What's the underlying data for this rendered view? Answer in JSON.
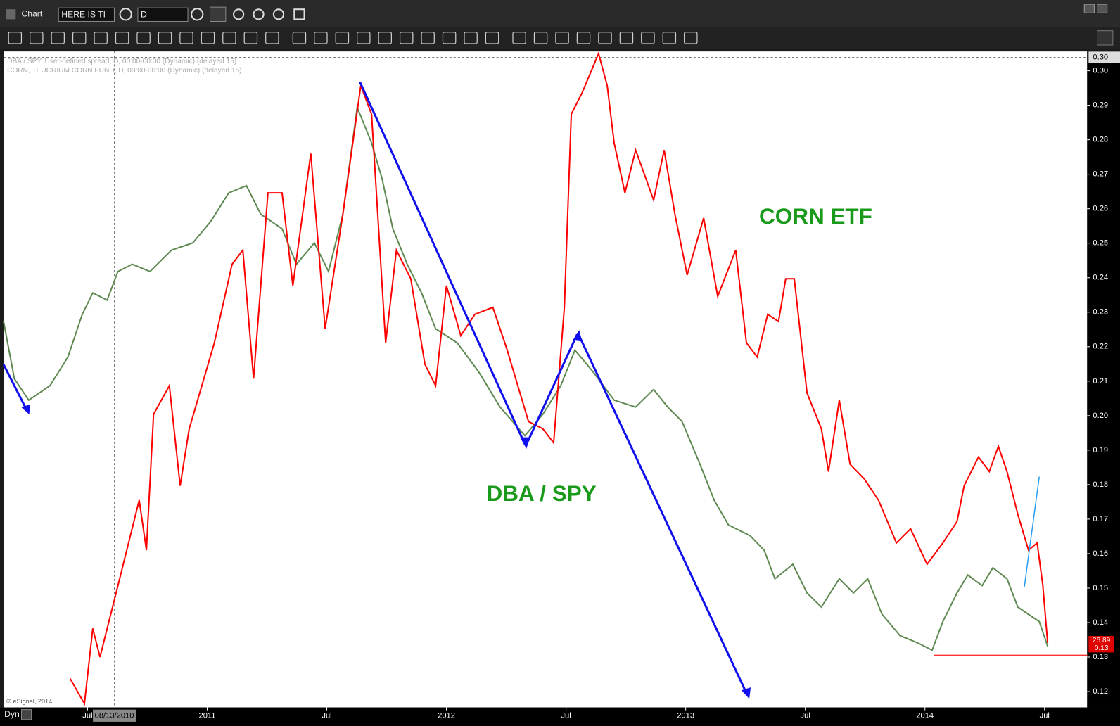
{
  "window": {
    "title": "Chart",
    "symbol": "HERE IS TI",
    "interval": "D",
    "mode": "Dyn"
  },
  "chart_data": {
    "type": "line",
    "copyright": "© eSignal, 2014",
    "annotations": [
      "CORN ETF",
      "DBA / SPY"
    ],
    "xlim": [
      2010.149,
      2014.678
    ],
    "xticks": [
      {
        "value": 2010.5,
        "label": "Jul"
      },
      {
        "value": 2011,
        "label": "2011"
      },
      {
        "value": 2011.5,
        "label": "Jul"
      },
      {
        "value": 2012,
        "label": "2012"
      },
      {
        "value": 2012.5,
        "label": "Jul"
      },
      {
        "value": 2013,
        "label": "2013"
      },
      {
        "value": 2013.5,
        "label": "Jul"
      },
      {
        "value": 2014,
        "label": "2014"
      },
      {
        "value": 2014.5,
        "label": "Jul"
      }
    ],
    "ylim": [
      0.1154,
      0.3056
    ],
    "yticks": [
      0.12,
      0.13,
      0.14,
      0.15,
      0.16,
      0.17,
      0.18,
      0.19,
      {
        "value": 0.2,
        "label": "0.20"
      },
      0.21,
      0.22,
      0.23,
      0.24,
      0.25,
      0.26,
      0.27,
      0.28,
      0.29,
      {
        "value": 0.3,
        "label": "0.30"
      }
    ],
    "crosshair": {
      "x": {
        "value": 2010.612,
        "label": "08/13/2010"
      },
      "y": {
        "value": 0.3039,
        "label": "0.30"
      }
    },
    "series": [
      {
        "name": "DBA / SPY, User-defined spread, D, 00:00-00:00 (Dynamic) (delayed 15)",
        "color": "#5f8a52",
        "last_price": 0.13,
        "x": [
          2010.149,
          2010.194,
          2010.254,
          2010.343,
          2010.418,
          2010.478,
          2010.522,
          2010.582,
          2010.627,
          2010.687,
          2010.761,
          2010.851,
          2010.94,
          2011.015,
          2011.09,
          2011.164,
          2011.224,
          2011.313,
          2011.373,
          2011.448,
          2011.507,
          2011.567,
          2011.627,
          2011.687,
          2011.731,
          2011.776,
          2011.836,
          2011.896,
          2011.955,
          2012.045,
          2012.134,
          2012.224,
          2012.328,
          2012.403,
          2012.478,
          2012.537,
          2012.612,
          2012.701,
          2012.791,
          2012.866,
          2012.925,
          2012.985,
          2013.06,
          2013.119,
          2013.179,
          2013.269,
          2013.328,
          2013.373,
          2013.448,
          2013.507,
          2013.567,
          2013.642,
          2013.701,
          2013.761,
          2013.821,
          2013.896,
          2013.97,
          2014.03,
          2014.075,
          2014.134,
          2014.179,
          2014.239,
          2014.284,
          2014.343,
          2014.388,
          2014.433,
          2014.478,
          2014.513
        ],
        "values": [
          0.2273,
          0.2107,
          0.2045,
          0.2087,
          0.217,
          0.2294,
          0.2356,
          0.2335,
          0.2418,
          0.2439,
          0.2418,
          0.248,
          0.2501,
          0.2563,
          0.2646,
          0.2667,
          0.2584,
          0.2542,
          0.2439,
          0.2501,
          0.2418,
          0.2584,
          0.2894,
          0.2791,
          0.2687,
          0.2542,
          0.2439,
          0.2356,
          0.2252,
          0.2211,
          0.2128,
          0.2025,
          0.1942,
          0.2004,
          0.2087,
          0.219,
          0.2128,
          0.2045,
          0.2025,
          0.2076,
          0.2025,
          0.1983,
          0.1859,
          0.1755,
          0.1683,
          0.1652,
          0.161,
          0.1527,
          0.1569,
          0.1486,
          0.1445,
          0.1527,
          0.1486,
          0.1527,
          0.1424,
          0.1362,
          0.1341,
          0.132,
          0.1403,
          0.1486,
          0.1538,
          0.1507,
          0.1559,
          0.1527,
          0.1445,
          0.1424,
          0.1403,
          0.1331
        ]
      },
      {
        "name": "CORN, TEUCRIUM CORN FUND, D, 00:00-00:00 (Dynamic) (delayed 15)",
        "color": "#ff0000",
        "last_price": 26.89,
        "x": [
          2010.427,
          2010.487,
          2010.522,
          2010.552,
          2010.627,
          2010.716,
          2010.746,
          2010.776,
          2010.842,
          2010.887,
          2010.925,
          2011.03,
          2011.104,
          2011.149,
          2011.194,
          2011.254,
          2011.313,
          2011.358,
          2011.433,
          2011.493,
          2011.567,
          2011.642,
          2011.687,
          2011.746,
          2011.791,
          2011.851,
          2011.91,
          2011.955,
          2012.0,
          2012.06,
          2012.119,
          2012.194,
          2012.254,
          2012.343,
          2012.403,
          2012.448,
          2012.493,
          2012.522,
          2012.567,
          2012.636,
          2012.672,
          2012.701,
          2012.746,
          2012.791,
          2012.866,
          2012.91,
          2012.955,
          2013.006,
          2013.075,
          2013.134,
          2013.209,
          2013.254,
          2013.299,
          2013.343,
          2013.388,
          2013.418,
          2013.454,
          2013.507,
          2013.567,
          2013.597,
          2013.642,
          2013.687,
          2013.746,
          2013.806,
          2013.881,
          2013.94,
          2014.009,
          2014.075,
          2014.134,
          2014.164,
          2014.224,
          2014.269,
          2014.307,
          2014.343,
          2014.388,
          2014.433,
          2014.469,
          2014.493,
          2014.513
        ],
        "values": [
          0.1238,
          0.1165,
          0.1383,
          0.13,
          0.1507,
          0.1755,
          0.161,
          0.2004,
          0.2087,
          0.1797,
          0.1962,
          0.2211,
          0.2439,
          0.248,
          0.2107,
          0.2646,
          0.2646,
          0.2377,
          0.276,
          0.2252,
          0.2584,
          0.2957,
          0.2874,
          0.2211,
          0.248,
          0.2397,
          0.2149,
          0.2087,
          0.2377,
          0.2232,
          0.2294,
          0.2314,
          0.219,
          0.1983,
          0.1962,
          0.1921,
          0.2314,
          0.2874,
          0.2936,
          0.305,
          0.2957,
          0.2791,
          0.2646,
          0.277,
          0.2625,
          0.277,
          0.2584,
          0.2408,
          0.2573,
          0.2346,
          0.248,
          0.2211,
          0.217,
          0.2294,
          0.2273,
          0.2397,
          0.2397,
          0.2066,
          0.1962,
          0.1838,
          0.2045,
          0.1859,
          0.1817,
          0.1755,
          0.1631,
          0.1672,
          0.1569,
          0.1631,
          0.1693,
          0.1797,
          0.188,
          0.1838,
          0.1911,
          0.1838,
          0.1714,
          0.161,
          0.1631,
          0.1507,
          0.1341
        ]
      }
    ]
  }
}
